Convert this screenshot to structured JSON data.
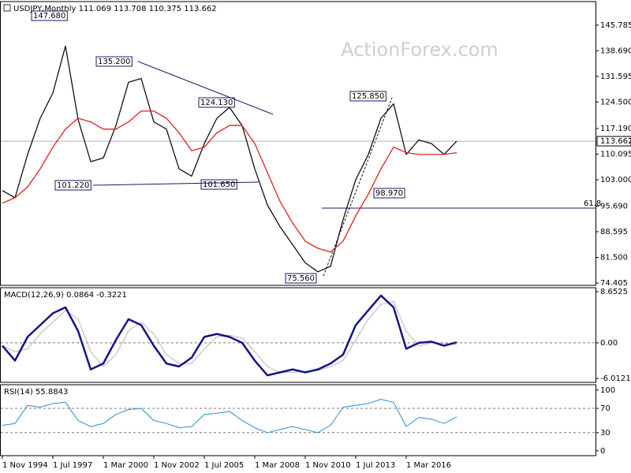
{
  "chart_data": [
    {
      "type": "line",
      "title": "USDJPY,Monthly  111.069 113.708 110.375 113.662",
      "watermark": "ActionForex.com",
      "x": [
        0,
        8,
        16,
        24,
        32,
        40,
        48,
        56,
        64,
        72,
        80,
        88,
        96,
        104,
        112,
        120,
        128,
        136,
        144,
        152,
        160,
        168,
        176,
        184,
        192,
        200,
        208,
        216,
        224,
        232,
        240,
        248,
        256,
        264,
        272,
        280,
        288
      ],
      "xlim": [
        -1.5,
        376
      ],
      "ylim": [
        73.75,
        152.3
      ],
      "yticks": [
        145.785,
        {
          "value": 138.69,
          "label": "138.690"
        },
        131.595,
        {
          "value": 124.5,
          "label": "124.500"
        },
        {
          "value": 117.19,
          "label": "117.190"
        },
        110.095,
        {
          "value": 103,
          "label": "103.000"
        },
        {
          "value": 95.69,
          "label": "95.690"
        },
        88.595,
        {
          "value": 81.5,
          "label": "81.500"
        },
        74.405
      ],
      "current_price": 113.662,
      "annotations": [
        "147.680",
        "135.200",
        "124.130",
        "101.220",
        "101.650",
        "125.850",
        "98.970",
        "75.560",
        "61.8"
      ],
      "series": [
        {
          "color": "#111111",
          "values": [
            100,
            98,
            110,
            120,
            127,
            140,
            119.7,
            108,
            109,
            118,
            130,
            131,
            119,
            117,
            106,
            104,
            113,
            120,
            123,
            118,
            106,
            96,
            90,
            85,
            80,
            77.5,
            79,
            92,
            103,
            110,
            120,
            124,
            110,
            114,
            113,
            110,
            113.662
          ]
        },
        {
          "color": "#e02020",
          "values": [
            96.5,
            98,
            101,
            106,
            112,
            117,
            120,
            119,
            117,
            117,
            119,
            122,
            122,
            120,
            116,
            111,
            112,
            116,
            118,
            118,
            113,
            105,
            97,
            91,
            86,
            84,
            83,
            86,
            93,
            99,
            106,
            112,
            110.5,
            110,
            110,
            110,
            110.5
          ]
        }
      ]
    },
    {
      "type": "line",
      "title": "MACD(12,26,9) 0.0864 -0.3221",
      "dashed_levels": true,
      "x": [
        0,
        8,
        16,
        24,
        32,
        40,
        48,
        56,
        64,
        72,
        80,
        88,
        96,
        104,
        112,
        120,
        128,
        136,
        144,
        152,
        160,
        168,
        176,
        184,
        192,
        200,
        208,
        216,
        224,
        232,
        240,
        248,
        256,
        264,
        272,
        280,
        288
      ],
      "xlim": [
        -1.5,
        376
      ],
      "ylim": [
        -6.68,
        9.32
      ],
      "yticks": [
        8.6525,
        {
          "value": 0,
          "label": "0.00"
        },
        -6.0121
      ],
      "series": [
        {
          "color": "#b5b5b5",
          "width": 1,
          "values": [
            -0.5,
            -1.5,
            -1,
            1.5,
            3.5,
            5.5,
            4,
            -1.5,
            -4,
            -2,
            2,
            3.5,
            1.5,
            -2,
            -3.5,
            -3.5,
            -1,
            1,
            1.3,
            0.8,
            -1.5,
            -4,
            -5,
            -5,
            -4.8,
            -4.7,
            -4,
            -3,
            0.5,
            4,
            6.5,
            7,
            2,
            -0.5,
            0,
            -0.1,
            -0.32
          ]
        },
        {
          "color": "#14148a",
          "width": 2.5,
          "values": [
            -0.5,
            -3,
            1,
            3,
            5,
            6,
            2,
            -4.5,
            -3.5,
            0.5,
            4,
            3,
            -0.5,
            -3.5,
            -4,
            -2.5,
            1,
            1.5,
            1,
            0,
            -3,
            -5.5,
            -5,
            -4.5,
            -5,
            -4.5,
            -3.5,
            -2,
            3,
            5.5,
            8,
            6,
            -1,
            0,
            0.2,
            -0.5,
            0.09
          ]
        }
      ]
    },
    {
      "type": "line",
      "title": "RSI(14) 55.8843",
      "dashed_levels": true,
      "x": [
        0,
        8,
        16,
        24,
        32,
        40,
        48,
        56,
        64,
        72,
        80,
        88,
        96,
        104,
        112,
        120,
        128,
        136,
        144,
        152,
        160,
        168,
        176,
        184,
        192,
        200,
        208,
        216,
        224,
        232,
        240,
        248,
        256,
        264,
        272,
        280,
        288
      ],
      "xlim": [
        -1.5,
        376
      ],
      "ylim": [
        -8,
        109
      ],
      "yticks": [
        100,
        70,
        30,
        0
      ],
      "xticks": [
        {
          "value": 0,
          "label": "1 Nov 1994"
        },
        {
          "value": 32,
          "label": "1 Jul 1997"
        },
        {
          "value": 64,
          "label": "1 Mar 2000"
        },
        {
          "value": 96,
          "label": "1 Nov 2002"
        },
        {
          "value": 128,
          "label": "1 Jul 2005"
        },
        {
          "value": 160,
          "label": "1 Mar 2008"
        },
        {
          "value": 192,
          "label": "1 Nov 2010"
        },
        {
          "value": 224,
          "label": "1 Jul 2013"
        },
        {
          "value": 256,
          "label": "1 Mar 2016"
        }
      ],
      "series": [
        {
          "color": "#2e8bd6",
          "width": 1,
          "values": [
            42,
            45,
            75,
            72,
            78,
            80,
            50,
            40,
            45,
            60,
            68,
            70,
            50,
            45,
            38,
            40,
            60,
            62,
            65,
            50,
            38,
            30,
            35,
            40,
            35,
            30,
            42,
            72,
            75,
            78,
            85,
            80,
            40,
            55,
            52,
            45,
            55.8843
          ]
        }
      ]
    }
  ]
}
